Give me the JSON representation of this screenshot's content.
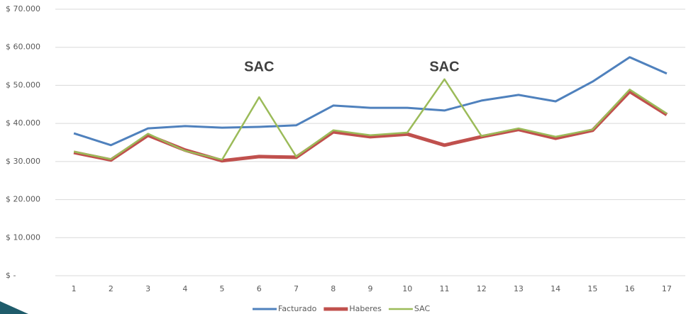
{
  "chart_data": {
    "type": "line",
    "categories": [
      "1",
      "2",
      "3",
      "4",
      "5",
      "6",
      "7",
      "8",
      "9",
      "10",
      "11",
      "12",
      "13",
      "14",
      "15",
      "16",
      "17"
    ],
    "series": [
      {
        "name": "Facturado",
        "color": "#4f81bd",
        "values": [
          37400,
          34300,
          38700,
          39300,
          38900,
          39100,
          39500,
          44700,
          44100,
          44100,
          43400,
          46000,
          47500,
          45800,
          51000,
          57400,
          53100
        ]
      },
      {
        "name": "Haberes",
        "color": "#c0504d",
        "values": [
          32400,
          30400,
          36900,
          33000,
          30200,
          31300,
          31100,
          37800,
          36500,
          37200,
          34300,
          36500,
          38400,
          36100,
          38200,
          48400,
          42300
        ]
      },
      {
        "name": "SAC",
        "color": "#9bbb59",
        "values": [
          32600,
          30600,
          37300,
          32800,
          30500,
          46900,
          31300,
          38200,
          36900,
          37600,
          51600,
          36700,
          38700,
          36500,
          38400,
          48900,
          42600
        ]
      }
    ],
    "annotations": [
      "SAC",
      "SAC"
    ],
    "ylim": [
      0,
      70000
    ],
    "yticks": [
      {
        "value": 0,
        "label": "$ -"
      },
      {
        "value": 10000,
        "label": "$ 10.000"
      },
      {
        "value": 20000,
        "label": "$ 20.000"
      },
      {
        "value": 30000,
        "label": "$ 30.000"
      },
      {
        "value": 40000,
        "label": "$ 40.000"
      },
      {
        "value": 50000,
        "label": "$ 50.000"
      },
      {
        "value": 60000,
        "label": "$ 60.000"
      },
      {
        "value": 70000,
        "label": "$ 70.000"
      }
    ],
    "grid": true
  }
}
